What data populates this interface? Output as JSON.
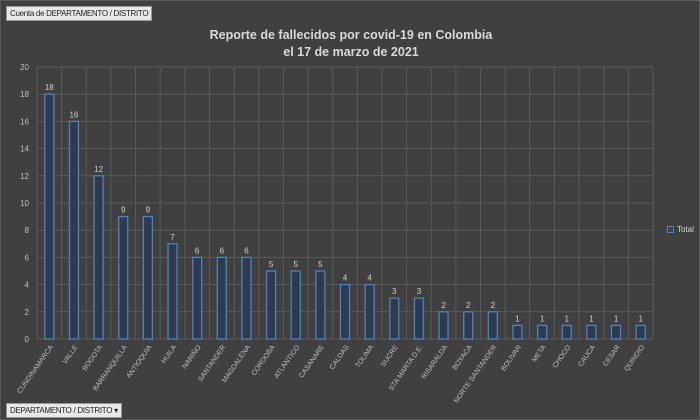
{
  "header": {
    "field_button": "Cuenta de DEPARTAMENTO / DISTRITO",
    "axis_button": "DEPARTAMENTO / DISTRITO"
  },
  "chart_data": {
    "type": "bar",
    "title": "Reporte de fallecidos por covid-19 en Colombia",
    "subtitle": "el 17 de marzo de 2021",
    "xlabel": "",
    "ylabel": "",
    "ylim": [
      0,
      20
    ],
    "yticks": [
      0,
      2,
      4,
      6,
      8,
      10,
      12,
      14,
      16,
      18,
      20
    ],
    "grid": true,
    "legend": {
      "entries": [
        "Total"
      ],
      "placement": "right"
    },
    "bar_color": "#4f81bd",
    "categories": [
      "CUNDINAMARCA",
      "VALLE",
      "BOGOTA",
      "BARRANQUILLA",
      "ANTIOQUIA",
      "HUILA",
      "NARIÑO",
      "SANTANDER",
      "MAGDALENA",
      "CORDOBA",
      "ATLANTICO",
      "CASANARE",
      "CALDAS",
      "TOLIMA",
      "SUCRE",
      "STA MARTA D.E.",
      "RISARALDA",
      "BOYACA",
      "NORTE SANTANDER",
      "BOLIVAR",
      "META",
      "CHOCO",
      "CAUCA",
      "CESAR",
      "QUINDIO"
    ],
    "values": [
      18,
      16,
      12,
      9,
      9,
      7,
      6,
      6,
      6,
      5,
      5,
      5,
      4,
      4,
      3,
      3,
      2,
      2,
      2,
      1,
      1,
      1,
      1,
      1,
      1
    ]
  }
}
